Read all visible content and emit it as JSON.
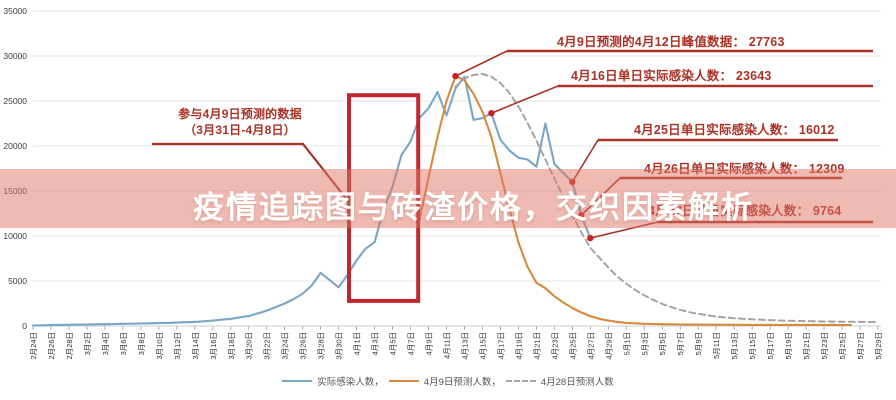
{
  "title": {
    "text": "疫情追踪图与砖渣价格，交织因素解析"
  },
  "colors": {
    "actual_line": "#7aa6c6",
    "apr9_forecast_line": "#d68a3e",
    "apr28_forecast_line": "#a4a4a4",
    "annotation_red": "#a93226",
    "highlight_box_red": "#c1272d",
    "marker_dot_red": "#cc2020",
    "watermark_band": "rgba(224,118,102,0.5)",
    "watermark_text": "#ffffff",
    "grid_line": "#e2e6ea",
    "axis_line": "#c8cdd2"
  },
  "chart_data": {
    "type": "line",
    "ylabel": "",
    "xlabel": "",
    "ylim": [
      0,
      35000
    ],
    "y_ticks": [
      0,
      5000,
      10000,
      15000,
      20000,
      25000,
      30000,
      35000
    ],
    "grid": true,
    "legend_position": "bottom",
    "x_labels": [
      "2月24日",
      "2月26日",
      "2月28日",
      "3月2日",
      "3月4日",
      "3月6日",
      "3月8日",
      "3月10日",
      "3月12日",
      "3月14日",
      "3月16日",
      "3月18日",
      "3月20日",
      "3月22日",
      "3月24日",
      "3月26日",
      "3月28日",
      "3月30日",
      "4月1日",
      "4月3日",
      "4月5日",
      "4月7日",
      "4月9日",
      "4月11日",
      "4月13日",
      "4月15日",
      "4月17日",
      "4月19日",
      "4月21日",
      "4月23日",
      "4月25日",
      "4月27日",
      "4月29日",
      "5月1日",
      "5月3日",
      "5月5日",
      "5月7日",
      "5月9日",
      "5月11日",
      "5月13日",
      "5月15日",
      "5月17日",
      "5月19日",
      "5月21日",
      "5月23日",
      "5月25日",
      "5月27日",
      "5月29日"
    ],
    "series": [
      {
        "name": "实际感染人数",
        "style": "solid",
        "color": "#7aa6c6",
        "start_day": 0,
        "values": [
          60,
          80,
          100,
          120,
          130,
          150,
          170,
          190,
          200,
          220,
          240,
          260,
          280,
          300,
          320,
          350,
          380,
          420,
          460,
          520,
          600,
          700,
          800,
          950,
          1100,
          1400,
          1700,
          2100,
          2500,
          3000,
          3600,
          4500,
          5900,
          5100,
          4300,
          5700,
          7300,
          8600,
          9300,
          13000,
          15500,
          19000,
          20500,
          23100,
          24200,
          26000,
          23400,
          26400,
          27700,
          22900,
          23100,
          23643,
          20700,
          19500,
          18700,
          18500,
          17700,
          22500,
          18000,
          17000,
          16012,
          12309,
          9764
        ]
      },
      {
        "name": "4月9日预测人数",
        "style": "solid",
        "color": "#d68a3e",
        "start_day": 43,
        "values": [
          11800,
          16500,
          21000,
          25000,
          27763,
          27300,
          25800,
          23800,
          21000,
          17000,
          13000,
          9300,
          6600,
          4800,
          4200,
          3300,
          2600,
          2000,
          1500,
          1100,
          800,
          600,
          450,
          350,
          300,
          250,
          220,
          200,
          185,
          170,
          160,
          150,
          145,
          140,
          135,
          130,
          128,
          126,
          125,
          124,
          123,
          122,
          121,
          120,
          119,
          118,
          117,
          116,
          115
        ]
      },
      {
        "name": "4月28日预测人数",
        "style": "dashed",
        "color": "#a4a4a4",
        "start_day": 47,
        "values": [
          26600,
          27500,
          27900,
          28000,
          27700,
          27000,
          25900,
          24400,
          22600,
          20600,
          18500,
          16400,
          14300,
          12300,
          10400,
          8700,
          7600,
          6500,
          5500,
          4700,
          4000,
          3400,
          2900,
          2450,
          2100,
          1800,
          1550,
          1350,
          1200,
          1050,
          950,
          870,
          800,
          740,
          690,
          650,
          615,
          585,
          560,
          540,
          520,
          505,
          490,
          478,
          467,
          457,
          448,
          440
        ]
      }
    ],
    "highlight_box": {
      "day_start": 35.15,
      "day_end": 42.85,
      "value_min": 2800,
      "value_max": 25650
    }
  },
  "annotations": [
    {
      "id": "prediction-window",
      "line1": "参与4月9日预测的数据",
      "line2": "（3月31日-4月8日）"
    },
    {
      "id": "peak-0412",
      "text": "4月9日预测的4月12日峰值数据： 27763",
      "target_day": 47,
      "target_value": 27763
    },
    {
      "id": "actual-0416",
      "text": "4月16日单日实际感染人数： 23643",
      "target_day": 51,
      "target_value": 23643
    },
    {
      "id": "actual-0425",
      "text": "4月25日单日实际感染人数： 16012",
      "target_day": 60,
      "target_value": 16012
    },
    {
      "id": "actual-0426",
      "text": "4月26日单日实际感染人数： 12309",
      "target_day": 61,
      "target_value": 12309
    },
    {
      "id": "actual-0427",
      "text": "4月27日单日实际感染人数： 9764",
      "target_day": 62,
      "target_value": 9764
    }
  ],
  "legend": {
    "items": [
      {
        "label": "实际感染人数，",
        "series": "actual"
      },
      {
        "label": "4月9日预测人数，",
        "series": "apr9-forecast"
      },
      {
        "label": "4月28日预测人数",
        "series": "apr28-forecast"
      }
    ]
  }
}
